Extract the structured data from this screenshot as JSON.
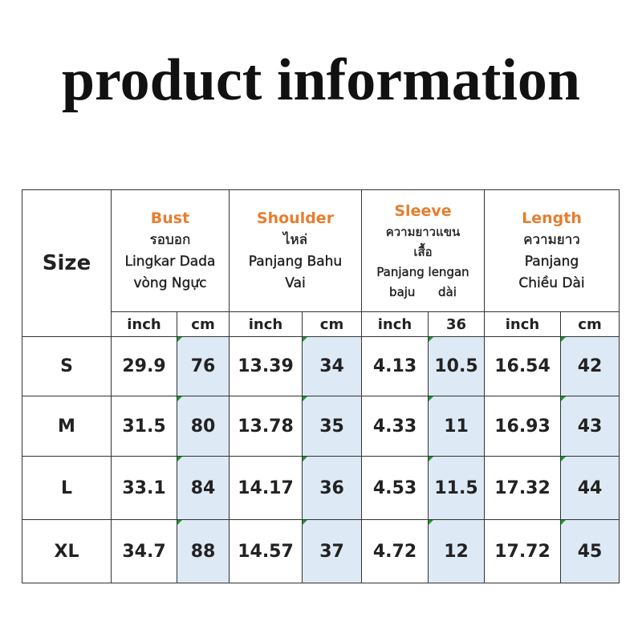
{
  "title": "product information",
  "table": {
    "size_header": "Size",
    "groups": [
      {
        "name": "Bust",
        "lines": [
          "รอบอก",
          "Lingkar Dada",
          "vòng Ngực"
        ]
      },
      {
        "name": "Shoulder",
        "lines": [
          "ไหล่",
          "Panjang Bahu",
          "Vai"
        ]
      },
      {
        "name": "Sleeve",
        "lines": [
          "ความยาวแขน",
          "เสื้อ",
          "Panjang lengan",
          "baju      dài"
        ]
      },
      {
        "name": "Length",
        "lines": [
          "ความยาว",
          "Panjang",
          "Chiều Dài"
        ]
      }
    ],
    "units": [
      "inch",
      "cm",
      "inch",
      "cm",
      "inch",
      "36",
      "inch",
      "cm"
    ],
    "rows": [
      [
        "S",
        "29.9",
        "76",
        "13.39",
        "34",
        "4.13",
        "10.5",
        "16.54",
        "42"
      ],
      [
        "M",
        "31.5",
        "80",
        "13.78",
        "35",
        "4.33",
        "11",
        "16.93",
        "43"
      ],
      [
        "L",
        "33.1",
        "84",
        "14.17",
        "36",
        "4.53",
        "11.5",
        "17.32",
        "44"
      ],
      [
        "XL",
        "34.7",
        "88",
        "14.57",
        "37",
        "4.72",
        "12",
        "17.72",
        "45"
      ]
    ]
  }
}
